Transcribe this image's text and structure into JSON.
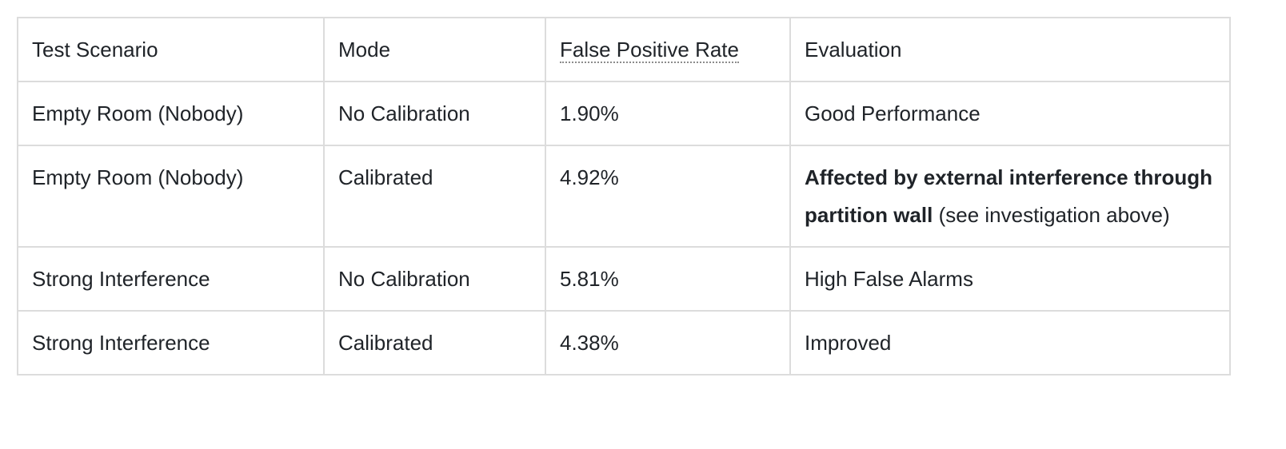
{
  "table": {
    "header": [
      "Test Scenario",
      "Mode",
      "False Positive Rate",
      "Evaluation"
    ],
    "rows": [
      [
        "Empty Room (Nobody)",
        "No Calibration",
        "1.90%",
        "Good Performance"
      ],
      [
        "Empty Room (Nobody)",
        "Calibrated",
        "4.92%",
        {
          "strong": "Affected by external interference through partition wall",
          "rest": "(see investigation above)"
        }
      ],
      [
        "Strong Interference",
        "No Calibration",
        "5.81%",
        "High False Alarms"
      ],
      [
        "Strong Interference",
        "Calibrated",
        "4.38%",
        "Improved"
      ]
    ]
  }
}
